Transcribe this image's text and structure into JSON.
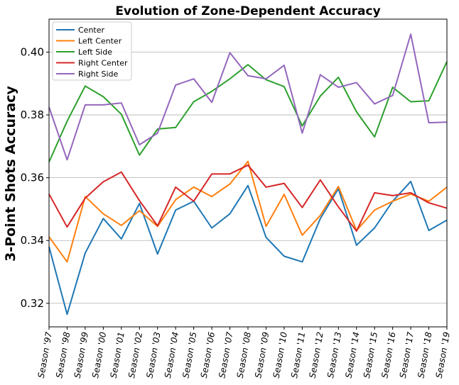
{
  "chart_data": {
    "type": "line",
    "title": "Evolution of Zone-Dependent Accuracy",
    "xlabel": "",
    "ylabel": "3-Point Shots Accuracy",
    "categories": [
      "Season '97",
      "Season '98",
      "Season '99",
      "Season '00",
      "Season '01",
      "Season '02",
      "Season '03",
      "Season '04",
      "Season '05",
      "Season '06",
      "Season '07",
      "Season '08",
      "Season '09",
      "Season '10",
      "Season '11",
      "Season '12",
      "Season '13",
      "Season '14",
      "Season '15",
      "Season '16",
      "Season '17",
      "Season '18",
      "Season '19"
    ],
    "ylim": [
      0.3125,
      0.4105
    ],
    "yticks": [
      0.32,
      0.34,
      0.36,
      0.38,
      0.4
    ],
    "ytick_labels": [
      "0.32",
      "0.34",
      "0.36",
      "0.38",
      "0.40"
    ],
    "grid": "horizontal",
    "legend_position": "top-left",
    "series": [
      {
        "name": "Center",
        "color": "#1f77b4",
        "values": [
          0.338,
          0.3165,
          0.336,
          0.347,
          0.3405,
          0.3518,
          0.3357,
          0.3497,
          0.3525,
          0.344,
          0.3485,
          0.3575,
          0.341,
          0.335,
          0.3332,
          0.347,
          0.3565,
          0.3385,
          0.344,
          0.3525,
          0.3588,
          0.3432,
          0.3465
        ]
      },
      {
        "name": "Left Center",
        "color": "#ff7f0e",
        "values": [
          0.3412,
          0.3332,
          0.354,
          0.3485,
          0.3448,
          0.3495,
          0.3445,
          0.353,
          0.357,
          0.354,
          0.358,
          0.3652,
          0.3445,
          0.3547,
          0.3417,
          0.348,
          0.3572,
          0.3432,
          0.3497,
          0.3525,
          0.3548,
          0.3525,
          0.357
        ]
      },
      {
        "name": "Left Side",
        "color": "#2ca02c",
        "values": [
          0.365,
          0.378,
          0.3892,
          0.3858,
          0.3802,
          0.3672,
          0.3755,
          0.376,
          0.3842,
          0.3875,
          0.3915,
          0.396,
          0.3912,
          0.389,
          0.3765,
          0.386,
          0.392,
          0.381,
          0.373,
          0.3888,
          0.3842,
          0.3845,
          0.397
        ]
      },
      {
        "name": "Right Center",
        "color": "#d62728",
        "values": [
          0.3548,
          0.3443,
          0.3535,
          0.3587,
          0.3618,
          0.3527,
          0.3447,
          0.357,
          0.3525,
          0.3612,
          0.3612,
          0.364,
          0.357,
          0.3582,
          0.3505,
          0.3593,
          0.3507,
          0.343,
          0.3552,
          0.3543,
          0.3552,
          0.352,
          0.3503
        ]
      },
      {
        "name": "Right Side",
        "color": "#9467bd",
        "values": [
          0.3825,
          0.3657,
          0.3832,
          0.3832,
          0.3838,
          0.3705,
          0.3742,
          0.3895,
          0.3915,
          0.384,
          0.3998,
          0.3925,
          0.3915,
          0.3958,
          0.3742,
          0.3928,
          0.3888,
          0.3903,
          0.3835,
          0.3862,
          0.4057,
          0.3775,
          0.3777
        ]
      }
    ]
  }
}
